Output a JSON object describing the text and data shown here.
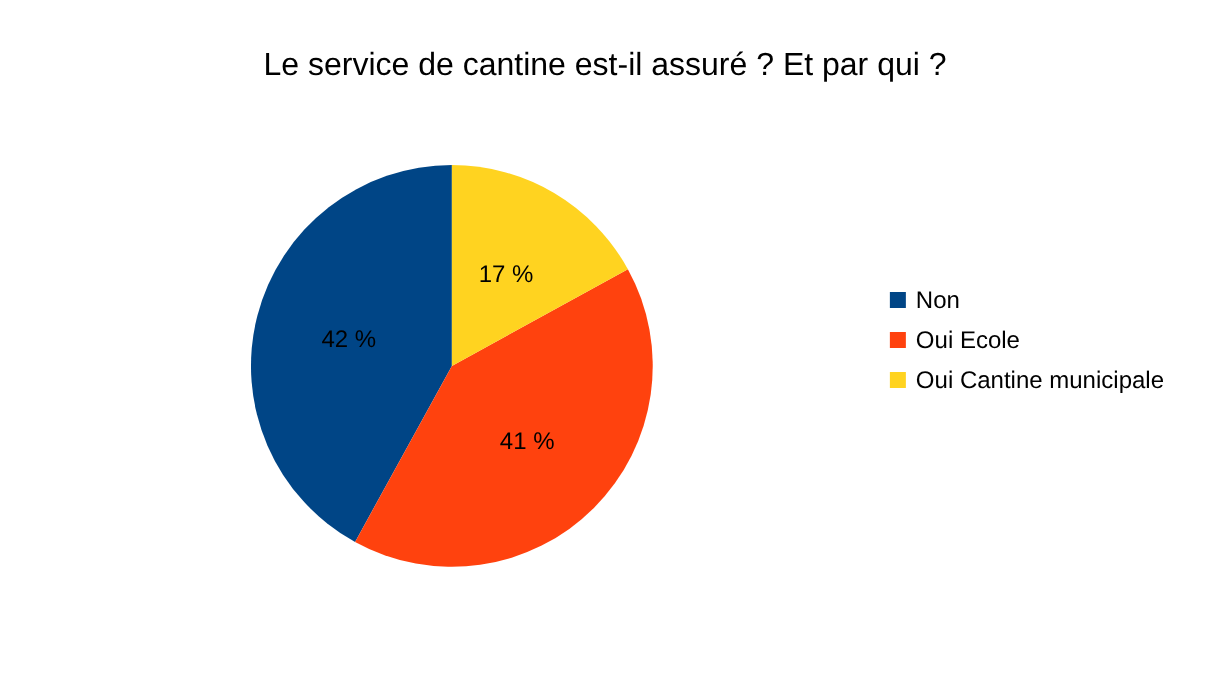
{
  "chart_data": {
    "type": "pie",
    "title": "Le service de cantine est-il assuré ? Et par qui ?",
    "categories": [
      "Non",
      "Oui Ecole",
      "Oui Cantine municipale"
    ],
    "values": [
      42,
      41,
      17
    ],
    "colors": [
      "#004586",
      "#ff420e",
      "#ffd320"
    ],
    "value_labels": [
      "42 %",
      "41 %",
      "17 %"
    ],
    "legend": "right"
  }
}
